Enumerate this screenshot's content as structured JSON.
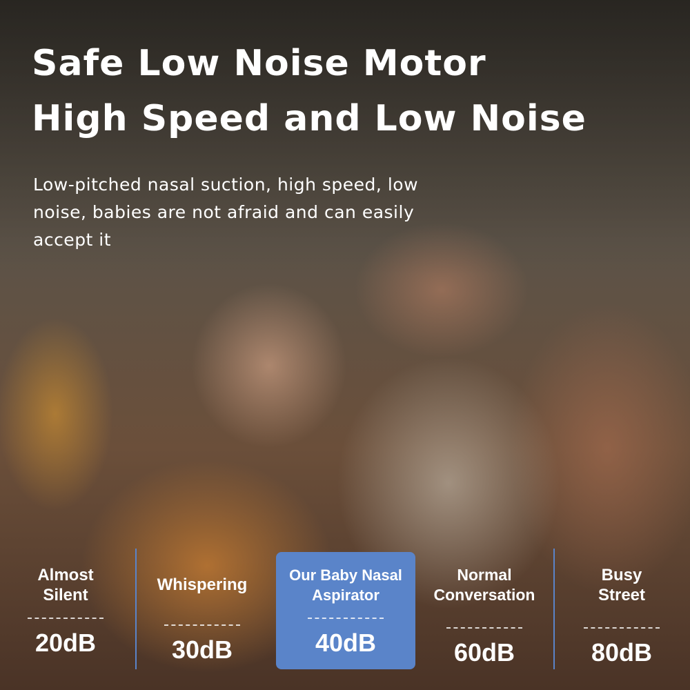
{
  "headline": {
    "line1": "Safe Low Noise Motor",
    "line2": "High Speed and Low Noise"
  },
  "description": "Low-pitched nasal suction, high speed, low noise, babies are not afraid and can easily accept it",
  "accent_color": "#5a84c9",
  "comparison": [
    {
      "label": "Almost Silent",
      "value": "20dB"
    },
    {
      "label": "Whispering",
      "value": "30dB"
    },
    {
      "label": "Our Baby Nasal Aspirator",
      "value": "40dB",
      "highlighted": true
    },
    {
      "label": "Normal Conversation",
      "value": "60dB"
    },
    {
      "label": "Busy Street",
      "value": "80dB"
    }
  ]
}
